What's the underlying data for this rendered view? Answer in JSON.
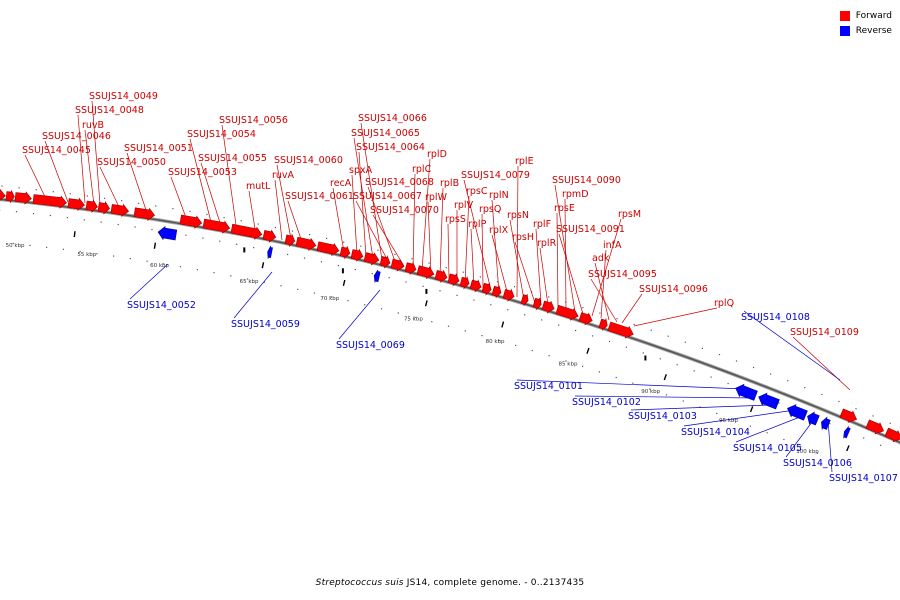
{
  "colors": {
    "forward": "#ff0000",
    "reverse": "#0000ff",
    "forward_label": "#cc0000",
    "reverse_label": "#0000cc",
    "backbone": "#808080"
  },
  "legend": [
    {
      "label": "Forward",
      "color": "#ff0000"
    },
    {
      "label": "Reverse",
      "color": "#0000ff"
    }
  ],
  "caption": {
    "species": "Streptococcus suis",
    "rest": " JS14, complete genome. - 0..2137435"
  },
  "scale_labels": [
    "50 kbp",
    "55 kbp",
    "60 kbp",
    "65 kbp",
    "70 kbp",
    "75 kbp",
    "80 kbp",
    "85 kbp",
    "90 kbp",
    "95 kbp",
    "100 kbp"
  ],
  "forward_labels": [
    "SSUJS14_0045",
    "SSUJS14_0046",
    "SSUJS14_0048",
    "SSUJS14_0049",
    "ruvB",
    "SSUJS14_0050",
    "SSUJS14_0051",
    "SSUJS14_0053",
    "SSUJS14_0054",
    "SSUJS14_0055",
    "SSUJS14_0056",
    "mutL",
    "ruvA",
    "SSUJS14_0060",
    "SSUJS14_0061",
    "recA",
    "spxA",
    "SSUJS14_0064",
    "SSUJS14_0065",
    "SSUJS14_0066",
    "SSUJS14_0067",
    "SSUJS14_0068",
    "SSUJS14_0070",
    "rplC",
    "rplD",
    "rplW",
    "rplB",
    "rpsS",
    "rplV",
    "rpsC",
    "rplP",
    "rpsQ",
    "SSUJS14_0079",
    "rplN",
    "rplX",
    "rplE",
    "rpsN",
    "rpsH",
    "rplF",
    "rplR",
    "rpsE",
    "rpmD",
    "SSUJS14_0090",
    "SSUJS14_0091",
    "rpsM",
    "infA",
    "adk",
    "SSUJS14_0095",
    "SSUJS14_0096",
    "rplQ",
    "SSUJS14_0109"
  ],
  "reverse_labels": [
    "SSUJS14_0052",
    "SSUJS14_0059",
    "SSUJS14_0069",
    "SSUJS14_0101",
    "SSUJS14_0102",
    "SSUJS14_0103",
    "SSUJS14_0104",
    "SSUJS14_0105",
    "SSUJS14_0106",
    "SSUJS14_0107",
    "SSUJS14_0108"
  ]
}
